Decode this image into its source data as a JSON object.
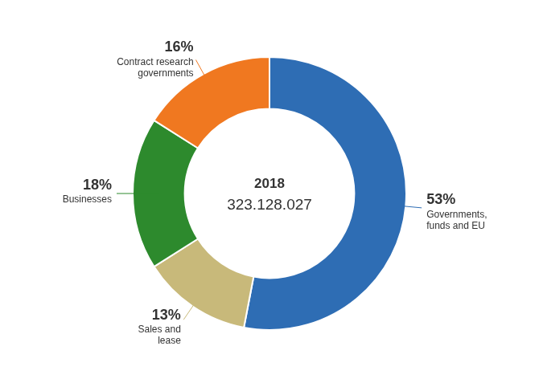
{
  "chart_data": {
    "type": "doughnut",
    "title": "2018",
    "subtitle": "323.128.027",
    "categories": [
      "Governments,\nfunds and EU",
      "Sales and\nlease",
      "Businesses",
      "Contract research\ngovernments"
    ],
    "values": [
      53,
      13,
      18,
      16
    ],
    "value_labels": [
      "53%",
      "13%",
      "18%",
      "16%"
    ],
    "colors": [
      "#2E6DB4",
      "#C8B97A",
      "#2D8A2D",
      "#F07820"
    ],
    "data_labels": true,
    "legend": false
  }
}
